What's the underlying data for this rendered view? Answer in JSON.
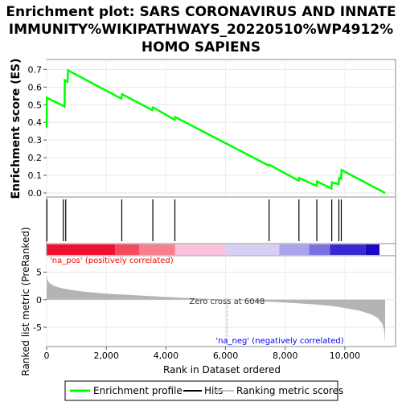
{
  "chart_data": {
    "type": "line",
    "title_lines": [
      "Enrichment plot: SARS CORONAVIRUS AND INNATE",
      "IMMUNITY%WIKIPATHWAYS_20220510%WP4912%",
      "HOMO SAPIENS"
    ],
    "top_panel": {
      "ylabel": "Enrichment score (ES)",
      "ylim": [
        0,
        0.72
      ],
      "yticks": [
        0.0,
        0.1,
        0.2,
        0.3,
        0.4,
        0.5,
        0.6,
        0.7
      ],
      "ytick_labels": [
        "0.0",
        "0.1",
        "0.2",
        "0.3",
        "0.4",
        "0.5",
        "0.6",
        "0.7"
      ],
      "series": [
        {
          "name": "Enrichment profile",
          "color": "#00ff00",
          "x": [
            0,
            8,
            600,
            610,
            700,
            720,
            2500,
            2530,
            3540,
            3570,
            4290,
            4310,
            7450,
            7470,
            8450,
            8470,
            9050,
            9070,
            9550,
            9570,
            9790,
            9810,
            9870,
            9890,
            11350
          ],
          "y": [
            0.37,
            0.54,
            0.49,
            0.64,
            0.63,
            0.695,
            0.535,
            0.56,
            0.47,
            0.485,
            0.415,
            0.43,
            0.155,
            0.16,
            0.07,
            0.085,
            0.04,
            0.065,
            0.025,
            0.06,
            0.05,
            0.085,
            0.08,
            0.13,
            0.0
          ]
        }
      ]
    },
    "hits": {
      "name": "Hits",
      "x": [
        10,
        560,
        640,
        2520,
        3560,
        4300,
        7460,
        8460,
        9060,
        9560,
        9800,
        9880
      ]
    },
    "rank_colorbar": {
      "segments": [
        {
          "x0": 0,
          "x1": 2300,
          "color": "#f01030"
        },
        {
          "x0": 2300,
          "x1": 3100,
          "color": "#f44a5e"
        },
        {
          "x0": 3100,
          "x1": 4300,
          "color": "#f8808e"
        },
        {
          "x0": 4300,
          "x1": 6000,
          "color": "#fbc0dc"
        },
        {
          "x0": 6000,
          "x1": 7800,
          "color": "#d8d0f4"
        },
        {
          "x0": 7800,
          "x1": 8800,
          "color": "#aaa4ec"
        },
        {
          "x0": 8800,
          "x1": 9500,
          "color": "#7a70e0"
        },
        {
          "x0": 9500,
          "x1": 10700,
          "color": "#3a28d0"
        },
        {
          "x0": 10700,
          "x1": 11350,
          "color": "#1a08c0"
        }
      ]
    },
    "bottom_panel": {
      "ylabel": "Ranked list metric (PreRanked)",
      "ylim": [
        -8.5,
        8
      ],
      "yticks": [
        5,
        0,
        -5
      ],
      "ytick_labels": [
        "5",
        "0",
        "-5"
      ],
      "metric_x": [
        0,
        30,
        100,
        250,
        500,
        800,
        1200,
        2000,
        3000,
        4000,
        5000,
        6048,
        7000,
        8000,
        9000,
        9600,
        10000,
        10500,
        10900,
        11100,
        11250,
        11320,
        11350
      ],
      "metric_y": [
        4.6,
        3.6,
        3.0,
        2.5,
        2.1,
        1.8,
        1.5,
        1.1,
        0.8,
        0.5,
        0.25,
        0.0,
        -0.25,
        -0.5,
        -0.85,
        -1.15,
        -1.5,
        -2.0,
        -2.7,
        -3.3,
        -4.3,
        -5.5,
        -8.0
      ]
    },
    "xlabel": "Rank in Dataset ordered",
    "xlim": [
      0,
      11700
    ],
    "xticks": [
      0,
      2000,
      4000,
      6000,
      8000,
      10000
    ],
    "xtick_labels": [
      "0",
      "2,000",
      "4,000",
      "6,000",
      "8,000",
      "10,000"
    ],
    "zero_cross": 6048,
    "annotations": {
      "pos_label": "'na_pos' (positively correlated)",
      "neg_label": "'na_neg' (negatively correlated)",
      "zero_label": "Zero cross at 6048",
      "pos_color": "#ff0000",
      "neg_color": "#0000ff"
    },
    "legend": {
      "items": [
        {
          "label": "Enrichment profile",
          "color": "#00ff00"
        },
        {
          "label": "Hits",
          "color": "#000000"
        },
        {
          "label": "Ranking metric scores",
          "color": "#c0c0c0"
        }
      ]
    }
  }
}
